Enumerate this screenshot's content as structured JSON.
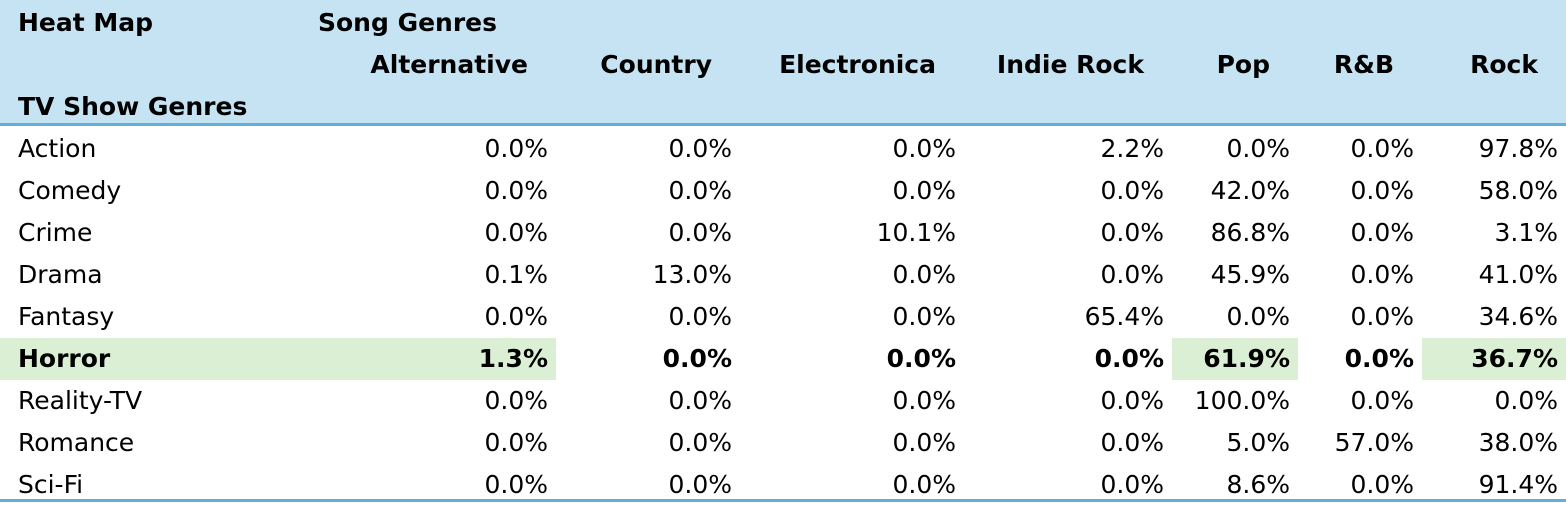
{
  "chart_data": {
    "type": "heatmap",
    "title": "Heat Map",
    "column_group_label": "Song Genres",
    "row_group_label": "TV Show Genres",
    "columns": [
      "Alternative",
      "Country",
      "Electronica",
      "Indie Rock",
      "Pop",
      "R&B",
      "Rock"
    ],
    "rows": [
      {
        "label": "Action",
        "values": [
          "0.0%",
          "0.0%",
          "0.0%",
          "2.2%",
          "0.0%",
          "0.0%",
          "97.8%"
        ]
      },
      {
        "label": "Comedy",
        "values": [
          "0.0%",
          "0.0%",
          "0.0%",
          "0.0%",
          "42.0%",
          "0.0%",
          "58.0%"
        ]
      },
      {
        "label": "Crime",
        "values": [
          "0.0%",
          "0.0%",
          "10.1%",
          "0.0%",
          "86.8%",
          "0.0%",
          "3.1%"
        ]
      },
      {
        "label": "Drama",
        "values": [
          "0.1%",
          "13.0%",
          "0.0%",
          "0.0%",
          "45.9%",
          "0.0%",
          "41.0%"
        ]
      },
      {
        "label": "Fantasy",
        "values": [
          "0.0%",
          "0.0%",
          "0.0%",
          "65.4%",
          "0.0%",
          "0.0%",
          "34.6%"
        ]
      },
      {
        "label": "Horror",
        "values": [
          "1.3%",
          "0.0%",
          "0.0%",
          "0.0%",
          "61.9%",
          "0.0%",
          "36.7%"
        ],
        "emphasized": true,
        "highlighted_columns": [
          0,
          4,
          6
        ]
      },
      {
        "label": "Reality-TV",
        "values": [
          "0.0%",
          "0.0%",
          "0.0%",
          "0.0%",
          "100.0%",
          "0.0%",
          "0.0%"
        ]
      },
      {
        "label": "Romance",
        "values": [
          "0.0%",
          "0.0%",
          "0.0%",
          "0.0%",
          "5.0%",
          "57.0%",
          "38.0%"
        ]
      },
      {
        "label": "Sci-Fi",
        "values": [
          "0.0%",
          "0.0%",
          "0.0%",
          "0.0%",
          "8.6%",
          "0.0%",
          "91.4%"
        ]
      }
    ],
    "colors": {
      "header_bg": "#c5e3f2",
      "header_border": "#63b0d6",
      "highlight": "#daefd3"
    }
  }
}
